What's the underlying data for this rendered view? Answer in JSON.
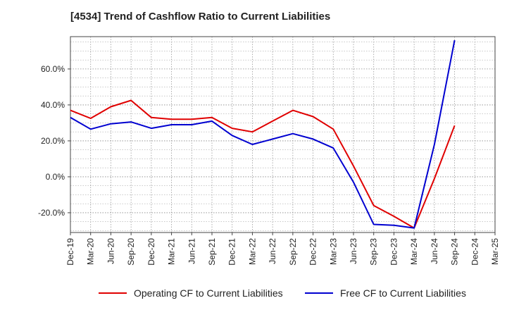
{
  "chart_data": {
    "type": "line",
    "title": "[4534]  Trend of Cashflow Ratio to Current Liabilities",
    "xlabel": "",
    "ylabel": "",
    "categories": [
      "Dec-19",
      "Mar-20",
      "Jun-20",
      "Sep-20",
      "Dec-20",
      "Mar-21",
      "Jun-21",
      "Sep-21",
      "Dec-21",
      "Mar-22",
      "Jun-22",
      "Sep-22",
      "Dec-22",
      "Mar-23",
      "Jun-23",
      "Sep-23",
      "Dec-23",
      "Mar-24",
      "Jun-24",
      "Sep-24",
      "Dec-24",
      "Mar-25"
    ],
    "y_ticks": [
      "60.0%",
      "40.0%",
      "20.0%",
      "0.0%",
      "-20.0%"
    ],
    "y_tick_values": [
      60,
      40,
      20,
      0,
      -20
    ],
    "ylim": [
      -31,
      78
    ],
    "grid": true,
    "legend_position": "bottom",
    "series": [
      {
        "name": "Operating CF to Current Liabilities",
        "color": "#e00000",
        "values": [
          37.0,
          32.5,
          39.0,
          42.5,
          33.0,
          32.0,
          32.0,
          33.0,
          27.0,
          25.0,
          31.0,
          37.0,
          33.5,
          26.5,
          6.0,
          -16.0,
          -22.0,
          -28.5,
          -1.0,
          28.5,
          null,
          null
        ]
      },
      {
        "name": "Free CF to Current Liabilities",
        "color": "#0000d0",
        "values": [
          33.0,
          26.5,
          29.5,
          30.5,
          27.0,
          29.0,
          29.0,
          31.0,
          23.0,
          18.0,
          21.0,
          24.0,
          21.0,
          16.0,
          -3.0,
          -26.5,
          -27.0,
          -28.5,
          18.0,
          76.0,
          null,
          null
        ]
      }
    ]
  }
}
